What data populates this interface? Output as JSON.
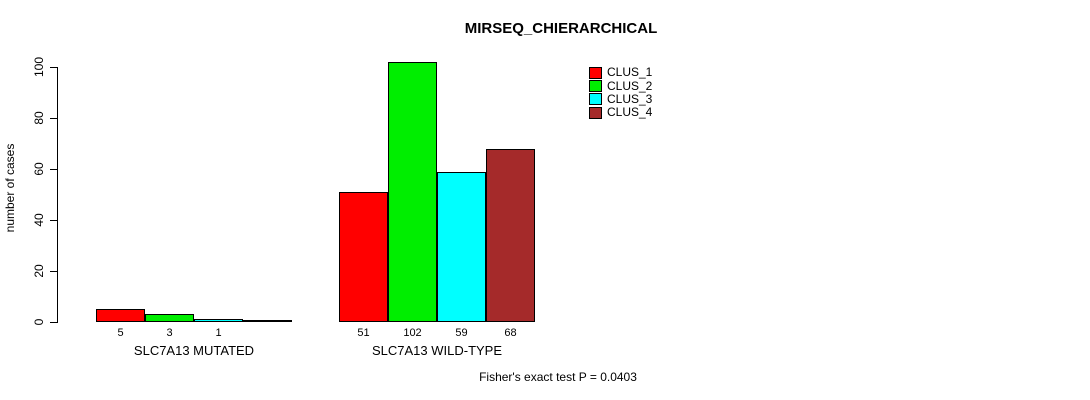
{
  "title": "MIRSEQ_CHIERARCHICAL",
  "footnote": "Fisher's exact test P = 0.0403",
  "accent_colors": {
    "clus_1": "#FF0000",
    "clus_2": "#00EE00",
    "clus_3": "#00FFFF",
    "clus_4": "#A52A2A"
  },
  "chart_data": {
    "type": "bar",
    "title": "MIRSEQ_CHIERARCHICAL",
    "xlabel": "",
    "ylabel": "number of cases",
    "categories": [
      "SLC7A13 MUTATED",
      "SLC7A13 WILD-TYPE"
    ],
    "series": [
      {
        "name": "CLUS_1",
        "color": "#FF0000",
        "values": [
          5,
          51
        ]
      },
      {
        "name": "CLUS_2",
        "color": "#00EE00",
        "values": [
          3,
          102
        ]
      },
      {
        "name": "CLUS_3",
        "color": "#00FFFF",
        "values": [
          1,
          59
        ]
      },
      {
        "name": "CLUS_4",
        "color": "#A52A2A",
        "values": [
          0,
          68
        ]
      }
    ],
    "yticks": [
      0,
      20,
      40,
      60,
      80,
      100
    ],
    "ylim": [
      0,
      104
    ],
    "grid": false,
    "legend_position": "top-right",
    "bar_value_labels": true,
    "annotation": "Fisher's exact test P = 0.0403"
  }
}
